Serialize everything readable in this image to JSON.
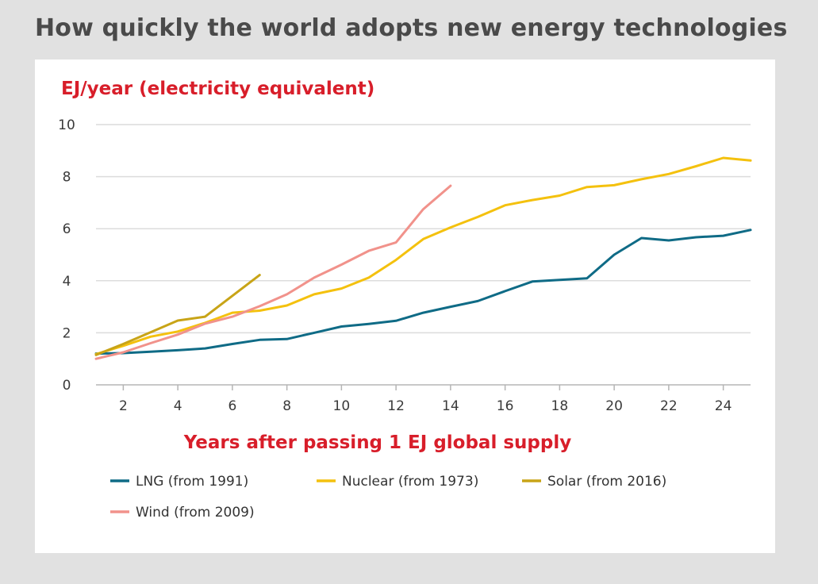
{
  "title": "How quickly the world adopts new energy technologies",
  "chart_data": {
    "type": "line",
    "ylabel": "EJ/year (electricity equivalent)",
    "xlabel": "Years after passing 1 EJ global supply",
    "xlim": [
      1,
      25
    ],
    "ylim": [
      0,
      10
    ],
    "xticks": [
      2,
      4,
      6,
      8,
      10,
      12,
      14,
      16,
      18,
      20,
      22,
      24
    ],
    "yticks": [
      0,
      2,
      4,
      6,
      8,
      10
    ],
    "grid": "horizontal",
    "legend_position": "bottom",
    "series": [
      {
        "name": "LNG (from 1991)",
        "color": "#0f6b86",
        "x": [
          1,
          2,
          3,
          4,
          5,
          6,
          7,
          8,
          9,
          10,
          11,
          12,
          13,
          14,
          15,
          16,
          17,
          18,
          19,
          20,
          21,
          22,
          23,
          24,
          25
        ],
        "values": [
          1.2,
          1.22,
          1.27,
          1.33,
          1.4,
          1.57,
          1.73,
          1.76,
          2.0,
          2.24,
          2.34,
          2.46,
          2.77,
          3.0,
          3.22,
          3.6,
          3.97,
          4.03,
          4.09,
          5.0,
          5.64,
          5.55,
          5.67,
          5.73,
          5.95
        ]
      },
      {
        "name": "Nuclear (from 1973)",
        "color": "#f4c10e",
        "x": [
          1,
          2,
          3,
          4,
          5,
          6,
          7,
          8,
          9,
          10,
          11,
          12,
          13,
          14,
          15,
          16,
          17,
          18,
          19,
          20,
          21,
          22,
          23,
          24,
          25
        ],
        "values": [
          1.18,
          1.5,
          1.85,
          2.05,
          2.38,
          2.77,
          2.85,
          3.05,
          3.48,
          3.7,
          4.12,
          4.8,
          5.6,
          6.05,
          6.45,
          6.9,
          7.1,
          7.27,
          7.6,
          7.67,
          7.9,
          8.1,
          8.4,
          8.72,
          8.62
        ]
      },
      {
        "name": "Solar (from 2016)",
        "color": "#c8a417",
        "x": [
          1,
          2,
          3,
          4,
          5,
          6,
          7
        ],
        "values": [
          1.15,
          1.57,
          2.02,
          2.47,
          2.62,
          3.42,
          4.22
        ]
      },
      {
        "name": "Wind (from 2009)",
        "color": "#f1928b",
        "x": [
          1,
          2,
          3,
          4,
          5,
          6,
          7,
          8,
          9,
          10,
          11,
          12,
          13,
          14
        ],
        "values": [
          1.0,
          1.25,
          1.6,
          1.93,
          2.35,
          2.62,
          3.02,
          3.48,
          4.12,
          4.62,
          5.15,
          5.47,
          6.75,
          7.65
        ]
      }
    ]
  }
}
